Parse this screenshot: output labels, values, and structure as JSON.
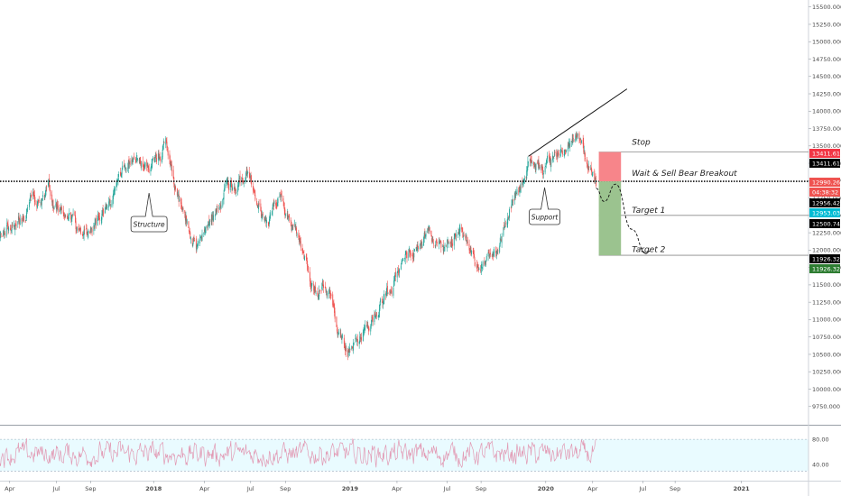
{
  "chart_data": [
    {
      "type": "candlestick",
      "title": "",
      "ylim": [
        9500,
        15600
      ],
      "y_ticks": [
        "15500.000",
        "15250.000",
        "15000.000",
        "14750.000",
        "14500.000",
        "14250.000",
        "14000.000",
        "13750.000",
        "13500.000",
        "13250.000",
        "13000.000",
        "12750.000",
        "12500.000",
        "12250.000",
        "12000.000",
        "11750.000",
        "11500.000",
        "11250.000",
        "11000.000",
        "10750.000",
        "10500.000",
        "10250.000",
        "10000.000",
        "9750.000"
      ],
      "x_ticks": [
        "Apr",
        "Jul",
        "Sep",
        "2018",
        "Apr",
        "Jul",
        "Sep",
        "2019",
        "Apr",
        "Jul",
        "Sep",
        "2020",
        "Apr",
        "Jul",
        "Sep",
        "2021"
      ],
      "x_ticks_bold": [
        "2018",
        "2019",
        "2020",
        "2021"
      ],
      "x_tick_positions": [
        {
          "date": "2017-04",
          "fx": 0.012
        },
        {
          "date": "2017-07",
          "fx": 0.07
        },
        {
          "date": "2017-09",
          "fx": 0.112
        },
        {
          "date": "2018-01",
          "fx": 0.19
        },
        {
          "date": "2018-04",
          "fx": 0.253
        },
        {
          "date": "2018-07",
          "fx": 0.31
        },
        {
          "date": "2018-09",
          "fx": 0.353
        },
        {
          "date": "2019-01",
          "fx": 0.433
        },
        {
          "date": "2019-04",
          "fx": 0.491
        },
        {
          "date": "2019-07",
          "fx": 0.553
        },
        {
          "date": "2019-09",
          "fx": 0.595
        },
        {
          "date": "2020-01",
          "fx": 0.675
        },
        {
          "date": "2020-04",
          "fx": 0.733
        },
        {
          "date": "2020-07",
          "fx": 0.795
        },
        {
          "date": "2020-09",
          "fx": 0.835
        },
        {
          "date": "2021-01",
          "fx": 0.917
        }
      ],
      "price_keypoints": [
        {
          "date": "2017-03",
          "value": 12200
        },
        {
          "date": "2017-05",
          "value": 12650
        },
        {
          "date": "2017-06",
          "value": 12800
        },
        {
          "date": "2017-07",
          "value": 12400
        },
        {
          "date": "2017-08",
          "value": 12150
        },
        {
          "date": "2017-09",
          "value": 12500
        },
        {
          "date": "2017-10",
          "value": 13000
        },
        {
          "date": "2017-11",
          "value": 13400
        },
        {
          "date": "2017-12",
          "value": 13050
        },
        {
          "date": "2018-01",
          "value": 13550
        },
        {
          "date": "2018-02",
          "value": 12500
        },
        {
          "date": "2018-03",
          "value": 12050
        },
        {
          "date": "2018-05",
          "value": 12900
        },
        {
          "date": "2018-06",
          "value": 13100
        },
        {
          "date": "2018-07",
          "value": 12450
        },
        {
          "date": "2018-08",
          "value": 12650
        },
        {
          "date": "2018-09",
          "value": 12200
        },
        {
          "date": "2018-10",
          "value": 11500
        },
        {
          "date": "2018-11",
          "value": 11300
        },
        {
          "date": "2018-12",
          "value": 10500
        },
        {
          "date": "2019-01",
          "value": 10900
        },
        {
          "date": "2019-02",
          "value": 11300
        },
        {
          "date": "2019-03",
          "value": 11600
        },
        {
          "date": "2019-04",
          "value": 12000
        },
        {
          "date": "2019-05",
          "value": 12250
        },
        {
          "date": "2019-06",
          "value": 12000
        },
        {
          "date": "2019-07",
          "value": 12350
        },
        {
          "date": "2019-08",
          "value": 11700
        },
        {
          "date": "2019-09",
          "value": 12000
        },
        {
          "date": "2019-10",
          "value": 12700
        },
        {
          "date": "2019-11",
          "value": 13200
        },
        {
          "date": "2019-12",
          "value": 13250
        },
        {
          "date": "2020-01",
          "value": 13450
        },
        {
          "date": "2020-02",
          "value": 13700
        },
        {
          "date": "2020-02-20",
          "value": 13200
        },
        {
          "date": "2020-03-05",
          "value": 12950
        }
      ],
      "horizontal_levels": [
        {
          "name": "structure-level",
          "value": 12990,
          "style": "dotted"
        },
        {
          "name": "stop-line",
          "value": 13411.617,
          "style": "solid"
        },
        {
          "name": "target-1-line",
          "value": 12500.747,
          "style": "solid"
        },
        {
          "name": "target-2-line",
          "value": 11926.324,
          "style": "solid"
        }
      ],
      "trendline": {
        "start": {
          "date": "2019-11",
          "value": 13350
        },
        "end": {
          "date": "2020-05",
          "value": 14320
        }
      },
      "forecast_path": [
        {
          "date": "2020-03-05",
          "value": 12890
        },
        {
          "date": "2020-03-20",
          "value": 12700
        },
        {
          "date": "2020-04-10",
          "value": 12950
        },
        {
          "date": "2020-05-10",
          "value": 12300
        },
        {
          "date": "2020-06-05",
          "value": 11950
        }
      ],
      "position": {
        "entry": 12990,
        "stop": 13411.617,
        "target": 11926.324,
        "start": "2020-03-10",
        "end": "2020-04-20",
        "stop_color": "#f7858a",
        "target_color": "#9bc38f"
      },
      "annotations": [
        {
          "text": "Stop",
          "value": 13520
        },
        {
          "text": "Wait & Sell Bear Breakout",
          "value": 13070
        },
        {
          "text": "Target 1",
          "value": 12540
        },
        {
          "text": "Target 2",
          "value": 11970
        }
      ],
      "callouts": [
        {
          "text": "Structure",
          "date": "2017-12"
        },
        {
          "text": "Support",
          "date": "2019-12"
        }
      ],
      "price_tags": [
        {
          "text": "13411.617",
          "value": 13411.617,
          "bg": "#f23645"
        },
        {
          "text": "13411.617",
          "value": 13411.617,
          "bg": "#000000"
        },
        {
          "text": "12990.260",
          "value": 12990.26,
          "bg": "#ef5350"
        },
        {
          "text": "04:38:32",
          "value": 12990.26,
          "bg": "#ef5350"
        },
        {
          "text": "12956.429",
          "value": 12956.429,
          "bg": "#000000"
        },
        {
          "text": "12953.036",
          "value": 12953.036,
          "bg": "#00bcd4"
        },
        {
          "text": "12500.747",
          "value": 12500.747,
          "bg": "#000000"
        },
        {
          "text": "11926.324",
          "value": 11926.324,
          "bg": "#000000"
        },
        {
          "text": "11926.324",
          "value": 11926.324,
          "bg": "#2e7d32"
        }
      ]
    },
    {
      "type": "line",
      "name": "rsi",
      "ylim": [
        15,
        100
      ],
      "y_ticks": [
        "80.00",
        "40.00"
      ],
      "band": [
        30,
        80
      ],
      "band_color": "#e9fbff",
      "line_color": "#e29ab4"
    }
  ]
}
